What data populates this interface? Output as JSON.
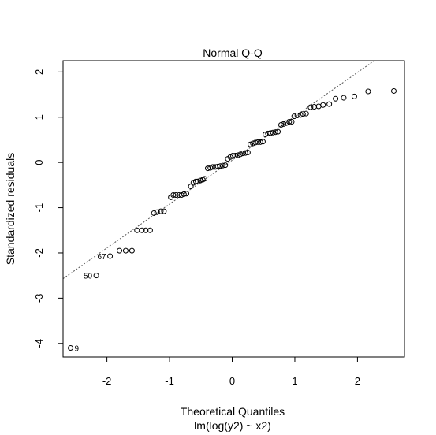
{
  "chart_data": {
    "type": "scatter",
    "title": "Normal Q-Q",
    "xlabel": "Theoretical Quantiles",
    "ylabel": "Standardized residuals",
    "subtitle": "lm(log(y2) ~ x2)",
    "xlim": [
      -2.7,
      2.75
    ],
    "ylim": [
      -4.3,
      2.25
    ],
    "xticks": [
      -2,
      -1,
      0,
      1,
      2
    ],
    "yticks": [
      -4,
      -3,
      -2,
      -1,
      0,
      1,
      2
    ],
    "reference_line": {
      "intercept": 0.05,
      "slope": 0.97
    },
    "points": [
      {
        "x": -2.58,
        "y": -4.1
      },
      {
        "x": -2.17,
        "y": -2.5
      },
      {
        "x": -1.95,
        "y": -2.07
      },
      {
        "x": -1.8,
        "y": -1.95
      },
      {
        "x": -1.7,
        "y": -1.95
      },
      {
        "x": -1.6,
        "y": -1.95
      },
      {
        "x": -1.52,
        "y": -1.5
      },
      {
        "x": -1.44,
        "y": -1.5
      },
      {
        "x": -1.38,
        "y": -1.5
      },
      {
        "x": -1.31,
        "y": -1.5
      },
      {
        "x": -1.25,
        "y": -1.12
      },
      {
        "x": -1.2,
        "y": -1.1
      },
      {
        "x": -1.14,
        "y": -1.08
      },
      {
        "x": -1.09,
        "y": -1.08
      },
      {
        "x": -0.98,
        "y": -0.77
      },
      {
        "x": -0.94,
        "y": -0.72
      },
      {
        "x": -0.9,
        "y": -0.72
      },
      {
        "x": -0.85,
        "y": -0.72
      },
      {
        "x": -0.81,
        "y": -0.72
      },
      {
        "x": -0.77,
        "y": -0.7
      },
      {
        "x": -0.73,
        "y": -0.69
      },
      {
        "x": -0.66,
        "y": -0.53
      },
      {
        "x": -0.62,
        "y": -0.45
      },
      {
        "x": -0.58,
        "y": -0.42
      },
      {
        "x": -0.55,
        "y": -0.42
      },
      {
        "x": -0.51,
        "y": -0.4
      },
      {
        "x": -0.47,
        "y": -0.38
      },
      {
        "x": -0.44,
        "y": -0.36
      },
      {
        "x": -0.39,
        "y": -0.13
      },
      {
        "x": -0.35,
        "y": -0.12
      },
      {
        "x": -0.31,
        "y": -0.1
      },
      {
        "x": -0.27,
        "y": -0.1
      },
      {
        "x": -0.23,
        "y": -0.09
      },
      {
        "x": -0.19,
        "y": -0.08
      },
      {
        "x": -0.15,
        "y": -0.07
      },
      {
        "x": -0.11,
        "y": -0.06
      },
      {
        "x": -0.07,
        "y": 0.08
      },
      {
        "x": -0.03,
        "y": 0.12
      },
      {
        "x": 0.01,
        "y": 0.15
      },
      {
        "x": 0.05,
        "y": 0.15
      },
      {
        "x": 0.09,
        "y": 0.16
      },
      {
        "x": 0.13,
        "y": 0.18
      },
      {
        "x": 0.17,
        "y": 0.2
      },
      {
        "x": 0.21,
        "y": 0.21
      },
      {
        "x": 0.25,
        "y": 0.22
      },
      {
        "x": 0.29,
        "y": 0.4
      },
      {
        "x": 0.33,
        "y": 0.42
      },
      {
        "x": 0.37,
        "y": 0.44
      },
      {
        "x": 0.41,
        "y": 0.45
      },
      {
        "x": 0.45,
        "y": 0.45
      },
      {
        "x": 0.49,
        "y": 0.46
      },
      {
        "x": 0.53,
        "y": 0.62
      },
      {
        "x": 0.57,
        "y": 0.64
      },
      {
        "x": 0.61,
        "y": 0.65
      },
      {
        "x": 0.65,
        "y": 0.66
      },
      {
        "x": 0.69,
        "y": 0.67
      },
      {
        "x": 0.73,
        "y": 0.68
      },
      {
        "x": 0.78,
        "y": 0.83
      },
      {
        "x": 0.82,
        "y": 0.85
      },
      {
        "x": 0.86,
        "y": 0.87
      },
      {
        "x": 0.91,
        "y": 0.9
      },
      {
        "x": 0.95,
        "y": 0.9
      },
      {
        "x": 0.99,
        "y": 1.02
      },
      {
        "x": 1.04,
        "y": 1.04
      },
      {
        "x": 1.09,
        "y": 1.05
      },
      {
        "x": 1.13,
        "y": 1.07
      },
      {
        "x": 1.18,
        "y": 1.08
      },
      {
        "x": 1.25,
        "y": 1.22
      },
      {
        "x": 1.31,
        "y": 1.23
      },
      {
        "x": 1.38,
        "y": 1.24
      },
      {
        "x": 1.45,
        "y": 1.27
      },
      {
        "x": 1.55,
        "y": 1.29
      },
      {
        "x": 1.65,
        "y": 1.41
      },
      {
        "x": 1.78,
        "y": 1.43
      },
      {
        "x": 1.95,
        "y": 1.46
      },
      {
        "x": 2.17,
        "y": 1.57
      },
      {
        "x": 2.58,
        "y": 1.58
      }
    ],
    "annotations": [
      {
        "label": "9",
        "x": -2.58,
        "y": -4.1,
        "side": "right"
      },
      {
        "label": "50",
        "x": -2.17,
        "y": -2.5,
        "side": "left"
      },
      {
        "label": "67",
        "x": -1.95,
        "y": -2.07,
        "side": "left"
      }
    ],
    "grid": false,
    "legend": "none"
  }
}
